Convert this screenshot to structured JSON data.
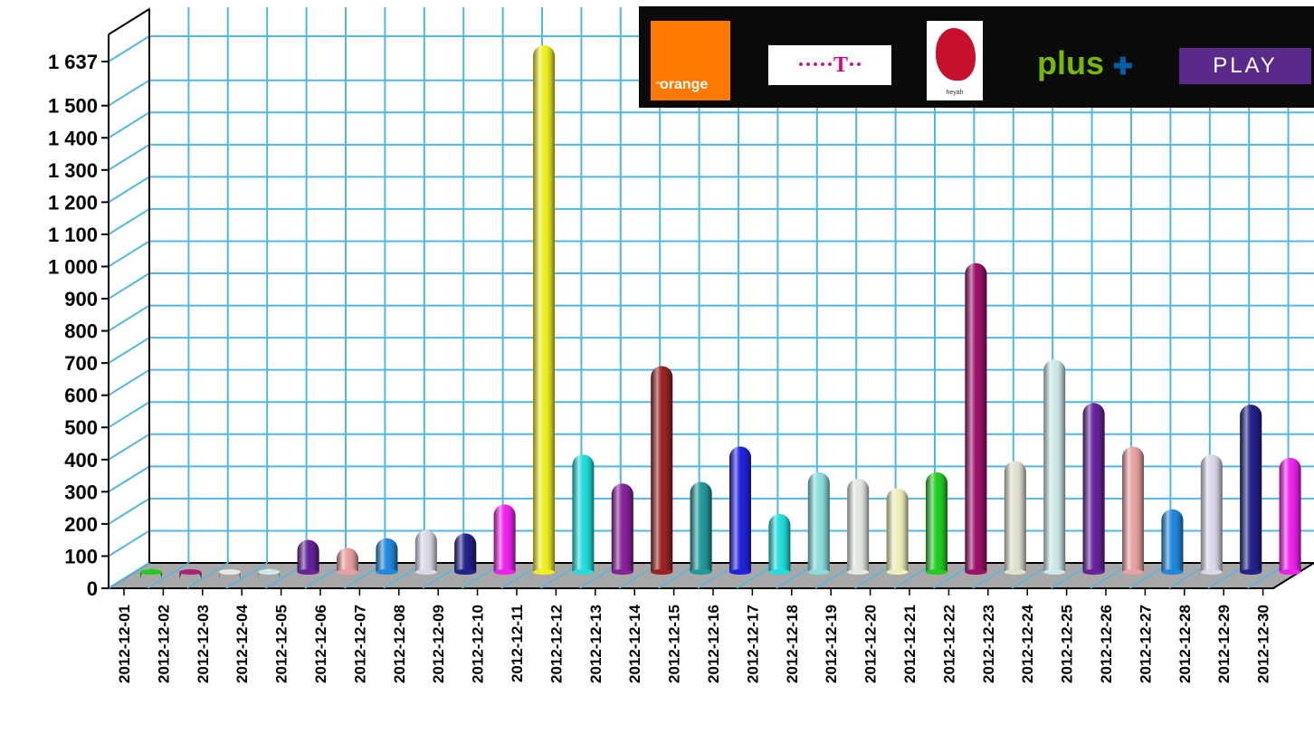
{
  "chart_data": {
    "type": "bar",
    "categories": [
      "2012-12-01",
      "2012-12-02",
      "2012-12-03",
      "2012-12-04",
      "2012-12-05",
      "2012-12-06",
      "2012-12-07",
      "2012-12-08",
      "2012-12-09",
      "2012-12-10",
      "2012-12-11",
      "2012-12-12",
      "2012-12-13",
      "2012-12-14",
      "2012-12-15",
      "2012-12-16",
      "2012-12-17",
      "2012-12-18",
      "2012-12-19",
      "2012-12-20",
      "2012-12-21",
      "2012-12-22",
      "2012-12-23",
      "2012-12-24",
      "2012-12-25",
      "2012-12-26",
      "2012-12-27",
      "2012-12-28",
      "2012-12-29",
      "2012-12-30"
    ],
    "values": [
      10,
      8,
      5,
      10,
      100,
      75,
      105,
      130,
      120,
      210,
      1637,
      365,
      275,
      640,
      280,
      390,
      180,
      310,
      290,
      260,
      310,
      960,
      345,
      660,
      525,
      390,
      195,
      365,
      520,
      355
    ],
    "colors": [
      "#22cc22",
      "#aa2277",
      "#e8e8e8",
      "#cce8e8",
      "#662299",
      "#e8a0a0",
      "#2288dd",
      "#d8d8e8",
      "#222288",
      "#ee22ee",
      "#eeee22",
      "#22dddd",
      "#882299",
      "#992222",
      "#229999",
      "#2222dd",
      "#22dddd",
      "#88dddd",
      "#e0e8e0",
      "#eeeebb",
      "#22cc22",
      "#991166",
      "#e0e0d0",
      "#cce8e8",
      "#662299",
      "#e8a0a0",
      "#2288dd",
      "#d8d8e8",
      "#222288",
      "#ee22ee"
    ],
    "yticks": [
      0,
      100,
      200,
      300,
      400,
      500,
      600,
      700,
      800,
      900,
      1000,
      1100,
      1200,
      1300,
      1400,
      1500,
      1637
    ],
    "ytick_labels": [
      "0",
      "100",
      "200",
      "300",
      "400",
      "500",
      "600",
      "700",
      "800",
      "900",
      "1 000",
      "1 100",
      "1 200",
      "1 300",
      "1 400",
      "1 500",
      "1 637"
    ],
    "ylim": [
      0,
      1637
    ],
    "grid": true,
    "title": "",
    "xlabel": "",
    "ylabel": ""
  },
  "logos": {
    "orange": {
      "label": "orange",
      "tm": "™"
    },
    "tmobile": {
      "label": "·····T··"
    },
    "heyah": {
      "label": "heyah"
    },
    "plus": {
      "label": "plus",
      "mark": "✚"
    },
    "play": {
      "label": "PLAY"
    }
  }
}
